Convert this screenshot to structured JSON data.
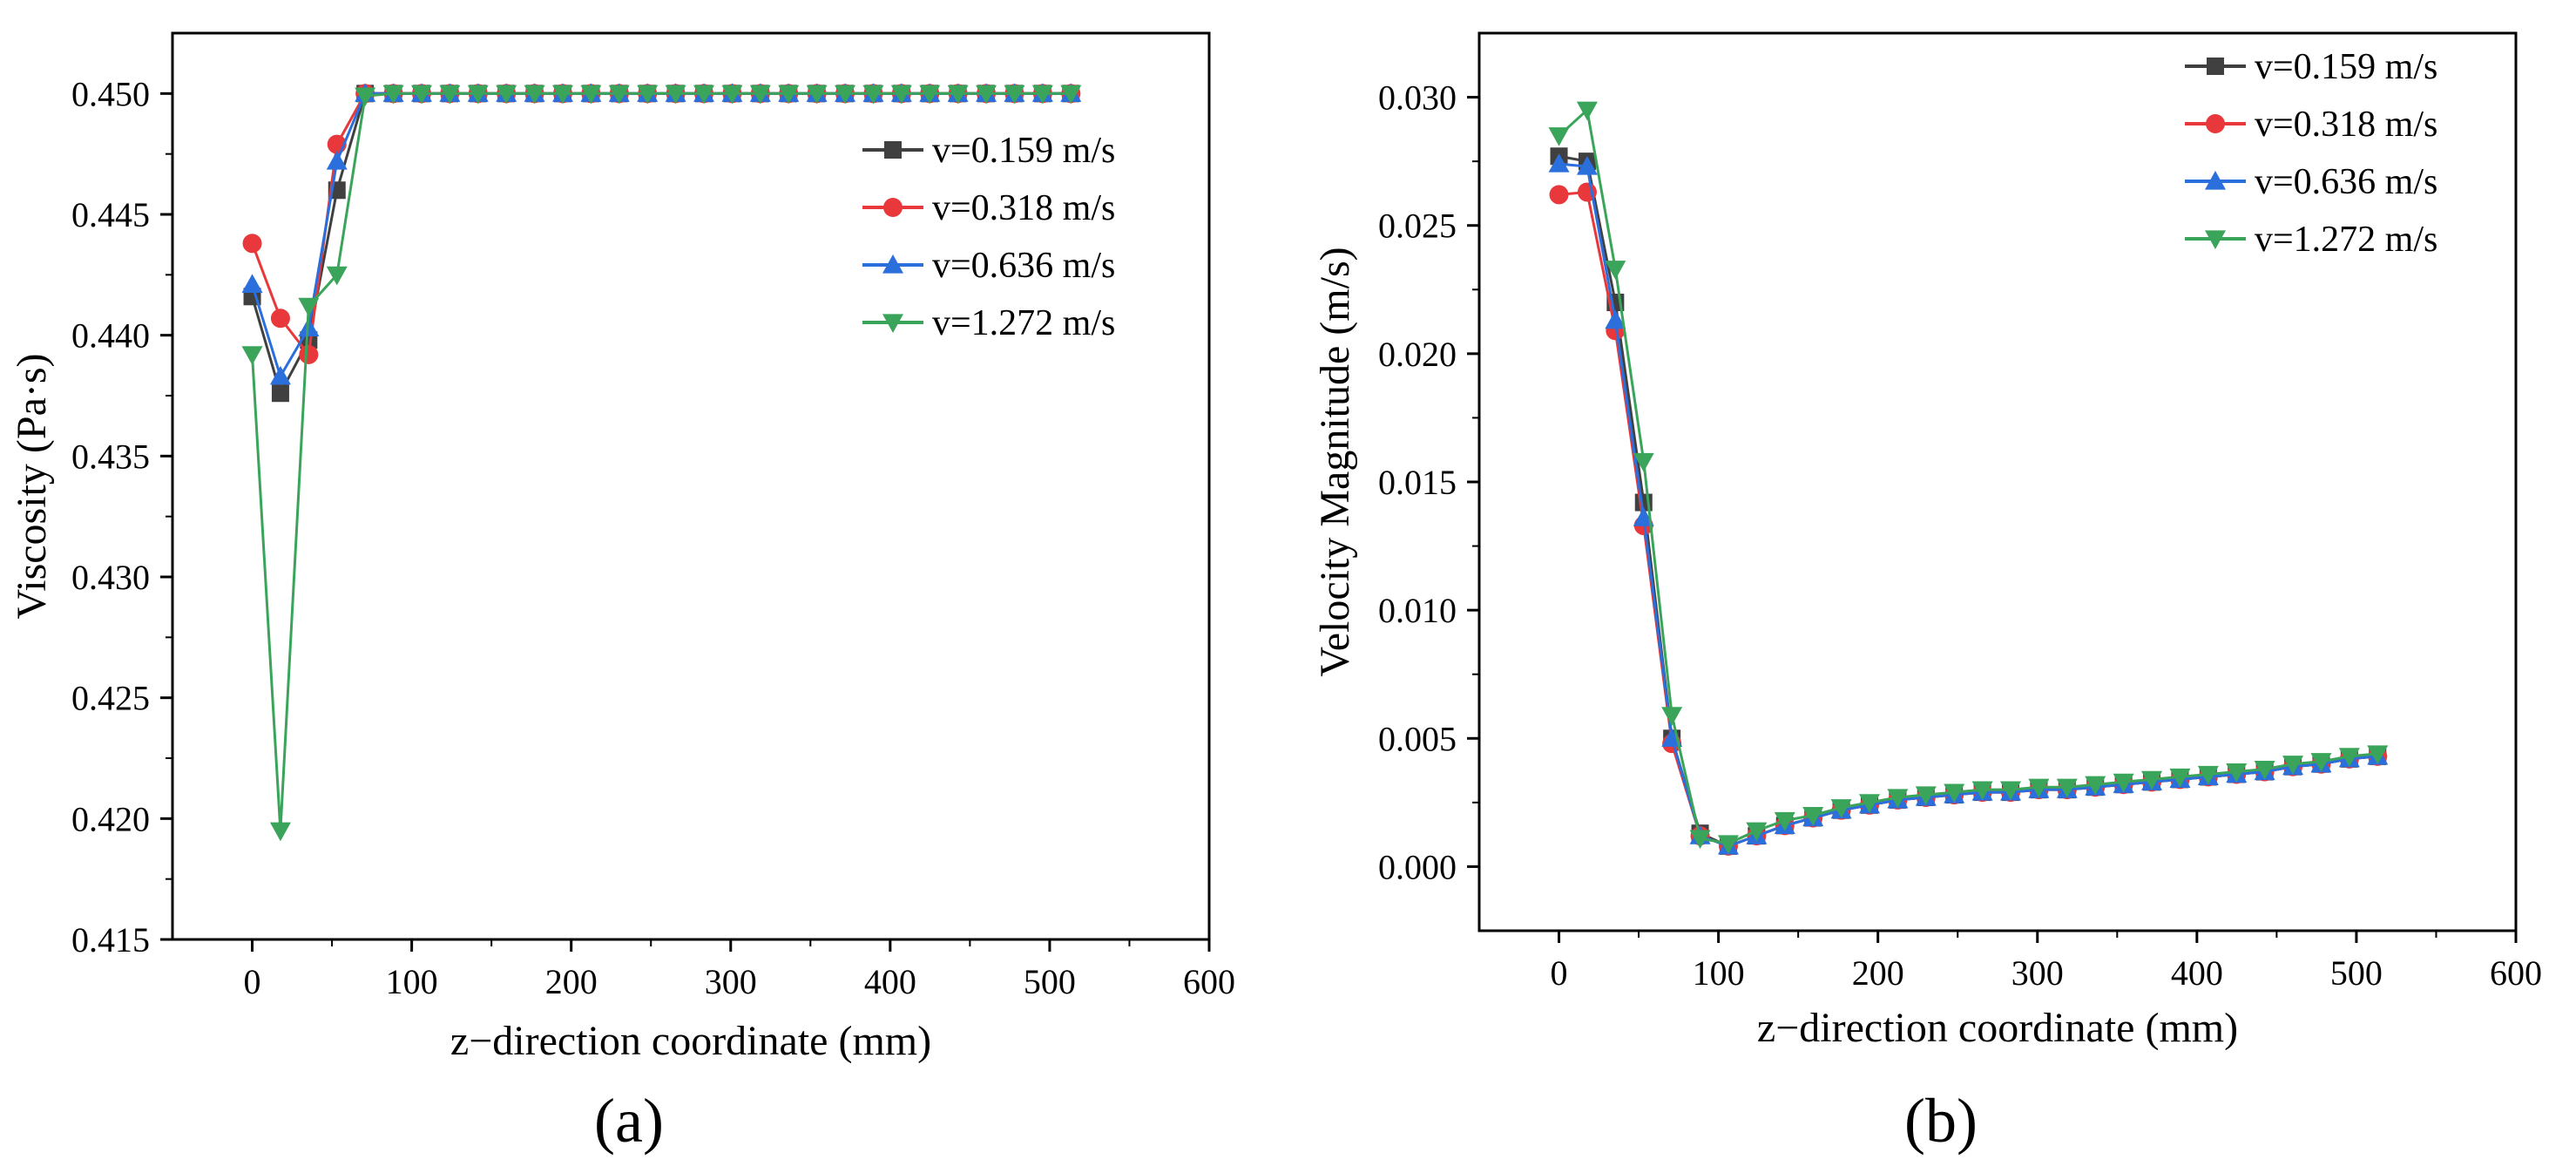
{
  "chart_data": [
    {
      "type": "line",
      "panel_label": "(a)",
      "xlabel": "z−direction coordinate (mm)",
      "ylabel": "Viscosity (Pa·s)",
      "xlim": [
        -50,
        600
      ],
      "ylim": [
        0.415,
        0.4525
      ],
      "xticks": [
        0,
        100,
        200,
        300,
        400,
        500,
        600
      ],
      "xtick_labels": [
        "0",
        "100",
        "200",
        "300",
        "400",
        "500",
        "600"
      ],
      "yticks": [
        0.415,
        0.42,
        0.425,
        0.43,
        0.435,
        0.44,
        0.445,
        0.45
      ],
      "ytick_labels": [
        "0.415",
        "0.420",
        "0.425",
        "0.430",
        "0.435",
        "0.440",
        "0.445",
        "0.450"
      ],
      "legend_position": "right",
      "x": [
        0,
        17.7,
        35.4,
        53.1,
        70.8,
        88.5,
        106.2,
        123.9,
        141.6,
        159.3,
        177,
        194.7,
        212.4,
        230.1,
        247.8,
        265.5,
        283.2,
        300.9,
        318.6,
        336.3,
        354,
        371.7,
        389.4,
        407.1,
        424.8,
        442.5,
        460.2,
        477.9,
        495.6,
        513.3
      ],
      "series": [
        {
          "name": "v=0.159 m/s",
          "color": "#404040",
          "marker": "square",
          "values": [
            0.4416,
            0.4376,
            0.4398,
            0.446,
            0.45,
            0.45,
            0.45,
            0.45,
            0.45,
            0.45,
            0.45,
            0.45,
            0.45,
            0.45,
            0.45,
            0.45,
            0.45,
            0.45,
            0.45,
            0.45,
            0.45,
            0.45,
            0.45,
            0.45,
            0.45,
            0.45,
            0.45,
            0.45,
            0.45,
            0.45
          ]
        },
        {
          "name": "v=0.318 m/s",
          "color": "#e8383b",
          "marker": "circle",
          "values": [
            0.4438,
            0.4407,
            0.4392,
            0.4479,
            0.45,
            0.45,
            0.45,
            0.45,
            0.45,
            0.45,
            0.45,
            0.45,
            0.45,
            0.45,
            0.45,
            0.45,
            0.45,
            0.45,
            0.45,
            0.45,
            0.45,
            0.45,
            0.45,
            0.45,
            0.45,
            0.45,
            0.45,
            0.45,
            0.45,
            0.45
          ]
        },
        {
          "name": "v=0.636 m/s",
          "color": "#2b6fdc",
          "marker": "triangle-up",
          "values": [
            0.4421,
            0.4383,
            0.4403,
            0.4472,
            0.45,
            0.45,
            0.45,
            0.45,
            0.45,
            0.45,
            0.45,
            0.45,
            0.45,
            0.45,
            0.45,
            0.45,
            0.45,
            0.45,
            0.45,
            0.45,
            0.45,
            0.45,
            0.45,
            0.45,
            0.45,
            0.45,
            0.45,
            0.45,
            0.45,
            0.45
          ]
        },
        {
          "name": "v=1.272 m/s",
          "color": "#3aa55a",
          "marker": "triangle-down",
          "values": [
            0.4392,
            0.4195,
            0.4412,
            0.4425,
            0.4499,
            0.45,
            0.45,
            0.45,
            0.45,
            0.45,
            0.45,
            0.45,
            0.45,
            0.45,
            0.45,
            0.45,
            0.45,
            0.45,
            0.45,
            0.45,
            0.45,
            0.45,
            0.45,
            0.45,
            0.45,
            0.45,
            0.45,
            0.45,
            0.45,
            0.45
          ]
        }
      ]
    },
    {
      "type": "line",
      "panel_label": "(b)",
      "xlabel": "z−direction coordinate (mm)",
      "ylabel": "Velocity Magnitude (m/s)",
      "xlim": [
        -50,
        600
      ],
      "ylim": [
        -0.0025,
        0.0325
      ],
      "xticks": [
        0,
        100,
        200,
        300,
        400,
        500,
        600
      ],
      "xtick_labels": [
        "0",
        "100",
        "200",
        "300",
        "400",
        "500",
        "600"
      ],
      "yticks": [
        0,
        0.005,
        0.01,
        0.015,
        0.02,
        0.025,
        0.03
      ],
      "ytick_labels": [
        "0.000",
        "0.005",
        "0.010",
        "0.015",
        "0.020",
        "0.025",
        "0.030"
      ],
      "legend_position": "top-right",
      "x": [
        0,
        17.7,
        35.4,
        53.1,
        70.8,
        88.5,
        106.2,
        123.9,
        141.6,
        159.3,
        177,
        194.7,
        212.4,
        230.1,
        247.8,
        265.5,
        283.2,
        300.9,
        318.6,
        336.3,
        354,
        371.7,
        389.4,
        407.1,
        424.8,
        442.5,
        460.2,
        477.9,
        495.6,
        513.3
      ],
      "series": [
        {
          "name": "v=0.159 m/s",
          "color": "#404040",
          "marker": "square",
          "values": [
            0.0277,
            0.0275,
            0.022,
            0.0142,
            0.005,
            0.0013,
            0.0008,
            0.0012,
            0.0016,
            0.0019,
            0.0022,
            0.0024,
            0.0026,
            0.0027,
            0.0028,
            0.0029,
            0.0029,
            0.003,
            0.003,
            0.0031,
            0.0032,
            0.0033,
            0.0034,
            0.0035,
            0.0036,
            0.0037,
            0.0039,
            0.004,
            0.0042,
            0.0043
          ]
        },
        {
          "name": "v=0.318 m/s",
          "color": "#e8383b",
          "marker": "circle",
          "values": [
            0.0262,
            0.0263,
            0.0209,
            0.0133,
            0.0048,
            0.0012,
            0.0008,
            0.0012,
            0.0016,
            0.0019,
            0.0022,
            0.0024,
            0.0026,
            0.0027,
            0.0028,
            0.0029,
            0.0029,
            0.003,
            0.003,
            0.0031,
            0.0032,
            0.0033,
            0.0034,
            0.0035,
            0.0036,
            0.0037,
            0.0039,
            0.004,
            0.0042,
            0.0043
          ]
        },
        {
          "name": "v=0.636 m/s",
          "color": "#2b6fdc",
          "marker": "triangle-up",
          "values": [
            0.0274,
            0.0273,
            0.0213,
            0.0136,
            0.005,
            0.0012,
            0.0008,
            0.0012,
            0.0016,
            0.0019,
            0.0022,
            0.0024,
            0.0026,
            0.0027,
            0.0028,
            0.0029,
            0.0029,
            0.003,
            0.003,
            0.0031,
            0.0032,
            0.0033,
            0.0034,
            0.0035,
            0.0036,
            0.0037,
            0.0039,
            0.004,
            0.0042,
            0.0043
          ]
        },
        {
          "name": "v=1.272 m/s",
          "color": "#3aa55a",
          "marker": "triangle-down",
          "values": [
            0.0285,
            0.0295,
            0.0233,
            0.0158,
            0.0059,
            0.0011,
            0.0009,
            0.0014,
            0.0018,
            0.002,
            0.0023,
            0.0025,
            0.0027,
            0.0028,
            0.0029,
            0.003,
            0.003,
            0.0031,
            0.0031,
            0.0032,
            0.0033,
            0.0034,
            0.0035,
            0.0036,
            0.0037,
            0.0038,
            0.004,
            0.0041,
            0.0043,
            0.0044
          ]
        }
      ]
    }
  ]
}
